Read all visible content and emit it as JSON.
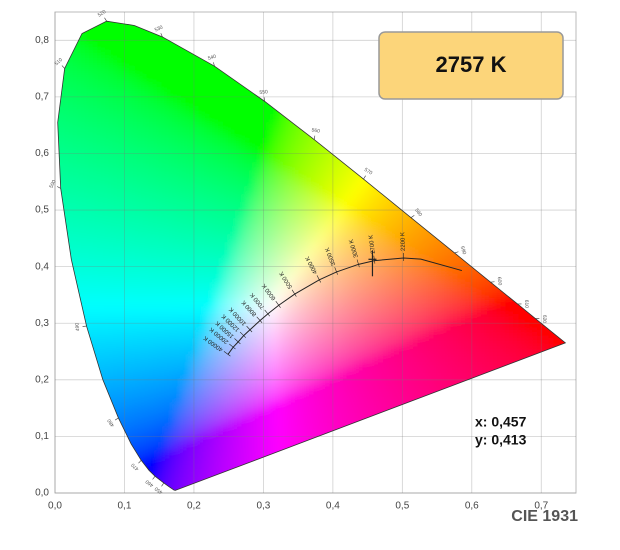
{
  "chart_data": {
    "type": "scatter",
    "xlim": [
      0,
      0.75
    ],
    "ylim": [
      0,
      0.85
    ],
    "xticks": [
      {
        "value": 0,
        "label": "0,0"
      },
      {
        "value": 0.1,
        "label": "0,1"
      },
      {
        "value": 0.2,
        "label": "0,2"
      },
      {
        "value": 0.3,
        "label": "0,3"
      },
      {
        "value": 0.4,
        "label": "0,4"
      },
      {
        "value": 0.5,
        "label": "0,5"
      },
      {
        "value": 0.6,
        "label": "0,6"
      },
      {
        "value": 0.7,
        "label": "0,7"
      }
    ],
    "yticks": [
      {
        "value": 0,
        "label": "0,0"
      },
      {
        "value": 0.1,
        "label": "0,1"
      },
      {
        "value": 0.2,
        "label": "0,2"
      },
      {
        "value": 0.3,
        "label": "0,3"
      },
      {
        "value": 0.4,
        "label": "0,4"
      },
      {
        "value": 0.5,
        "label": "0,5"
      },
      {
        "value": 0.6,
        "label": "0,6"
      },
      {
        "value": 0.7,
        "label": "0,7"
      },
      {
        "value": 0.8,
        "label": "0,8"
      }
    ],
    "grid": true,
    "locus": {
      "x": [
        0.1741,
        0.1733,
        0.1714,
        0.1644,
        0.1566,
        0.144,
        0.1355,
        0.1241,
        0.1096,
        0.0913,
        0.0687,
        0.0454,
        0.0235,
        0.0082,
        0.0039,
        0.0139,
        0.0389,
        0.0743,
        0.1142,
        0.1547,
        0.2296,
        0.3016,
        0.3731,
        0.4441,
        0.5125,
        0.5752,
        0.627,
        0.6658,
        0.6915,
        0.719,
        0.7347
      ],
      "y": [
        0.005,
        0.0048,
        0.0051,
        0.0109,
        0.0177,
        0.0297,
        0.0399,
        0.0578,
        0.0868,
        0.1327,
        0.2007,
        0.295,
        0.4127,
        0.5384,
        0.6548,
        0.7502,
        0.812,
        0.8338,
        0.8262,
        0.8059,
        0.7543,
        0.6923,
        0.6245,
        0.5547,
        0.4866,
        0.4242,
        0.3725,
        0.334,
        0.3083,
        0.2809,
        0.2653
      ],
      "labels": [
        null,
        null,
        null,
        null,
        "450",
        "460",
        null,
        "470",
        null,
        "480",
        null,
        "490",
        null,
        "500",
        null,
        "510",
        null,
        "520",
        null,
        "530",
        "540",
        "550",
        "560",
        "570",
        "580",
        "590",
        "600",
        "610",
        "620",
        null,
        null
      ]
    },
    "planck": {
      "x": [
        0.5857,
        0.5267,
        0.5018,
        0.4599,
        0.4369,
        0.4053,
        0.3805,
        0.3451,
        0.3221,
        0.3064,
        0.2952,
        0.2807,
        0.2716,
        0.2637,
        0.2565,
        0.249
      ],
      "y": [
        0.3931,
        0.4133,
        0.4153,
        0.4106,
        0.4041,
        0.3907,
        0.3768,
        0.3516,
        0.3318,
        0.3166,
        0.3048,
        0.2884,
        0.2782,
        0.2671,
        0.2577,
        0.245
      ],
      "labels": [
        null,
        null,
        "2200 K",
        "2700 K",
        "3000 K",
        "3500 K",
        "4000 K",
        "5000 K",
        "6000 K",
        "7000 K",
        "8000 K",
        "10000 K",
        "12000 K",
        "15000 K",
        "20000 K",
        "40000 K"
      ]
    },
    "point": {
      "x": 0.457,
      "y": 0.413,
      "x_label": "x: 0,457",
      "y_label": "y: 0,413"
    },
    "cct_label": "2757 K",
    "caption": "CIE 1931"
  }
}
